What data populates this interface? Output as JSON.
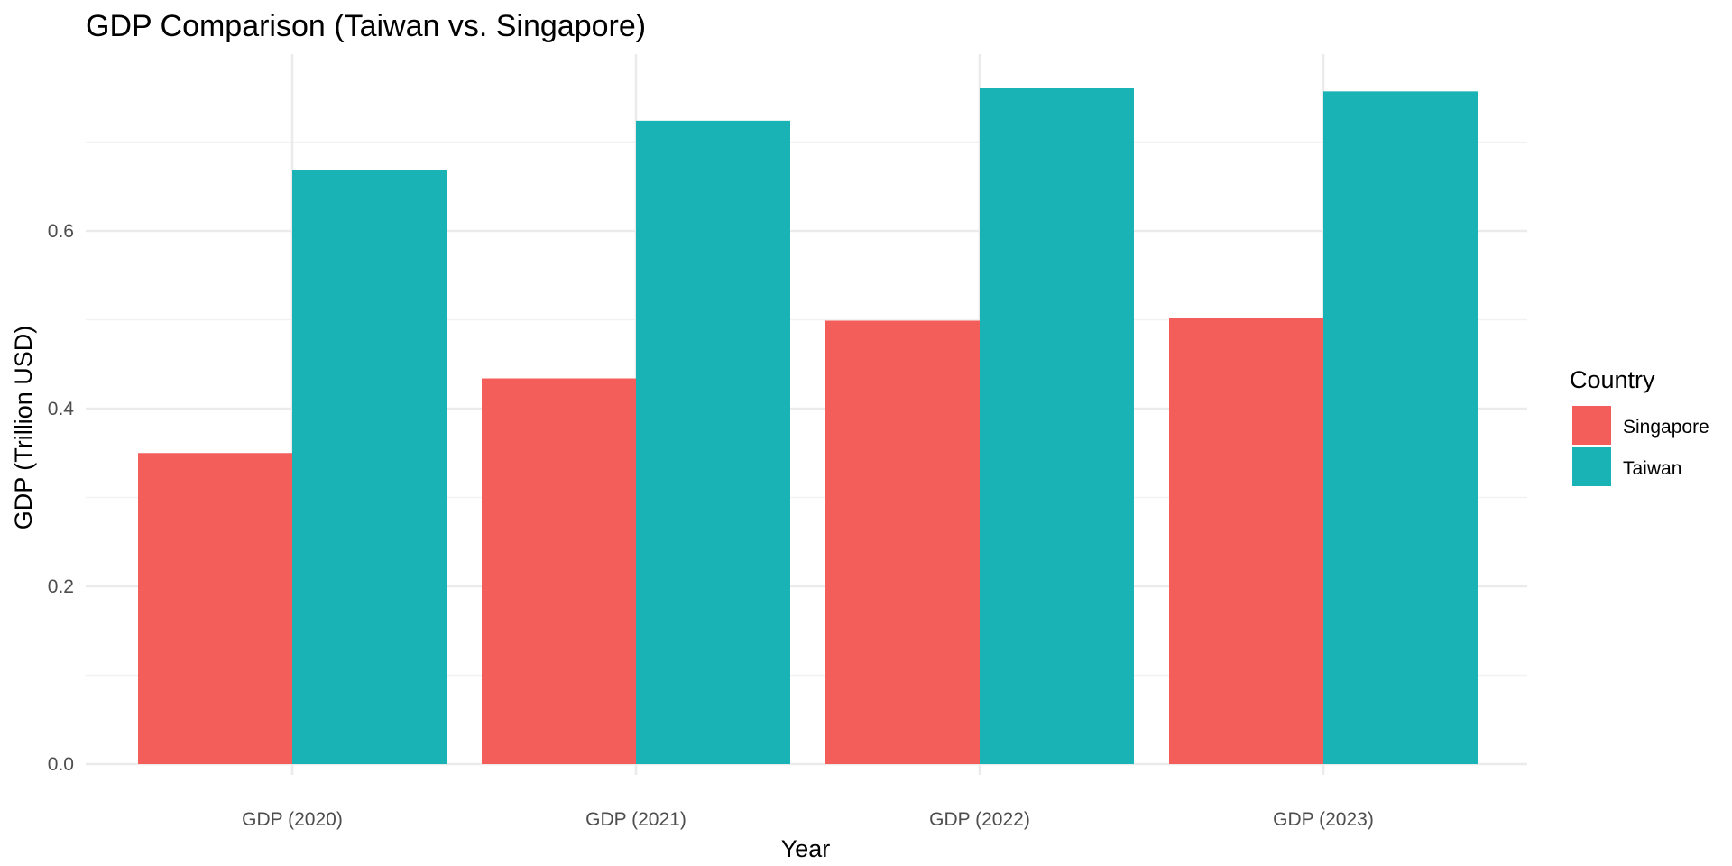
{
  "chart_data": {
    "type": "bar",
    "title": "GDP Comparison (Taiwan vs. Singapore)",
    "xlabel": "Year",
    "ylabel": "GDP (Trillion USD)",
    "categories": [
      "GDP (2020)",
      "GDP (2021)",
      "GDP (2022)",
      "GDP (2023)"
    ],
    "series": [
      {
        "name": "Singapore",
        "color": "#F35E5A",
        "values": [
          0.35,
          0.434,
          0.499,
          0.502
        ]
      },
      {
        "name": "Taiwan",
        "color": "#19B3B6",
        "values": [
          0.669,
          0.724,
          0.761,
          0.757
        ]
      }
    ],
    "ylim": [
      0,
      0.8
    ],
    "yticks": [
      0.0,
      0.2,
      0.4,
      0.6
    ],
    "ytick_labels": [
      "0.0",
      "0.2",
      "0.4",
      "0.6"
    ],
    "grid": true,
    "legend": {
      "title": "Country",
      "position": "right"
    }
  }
}
